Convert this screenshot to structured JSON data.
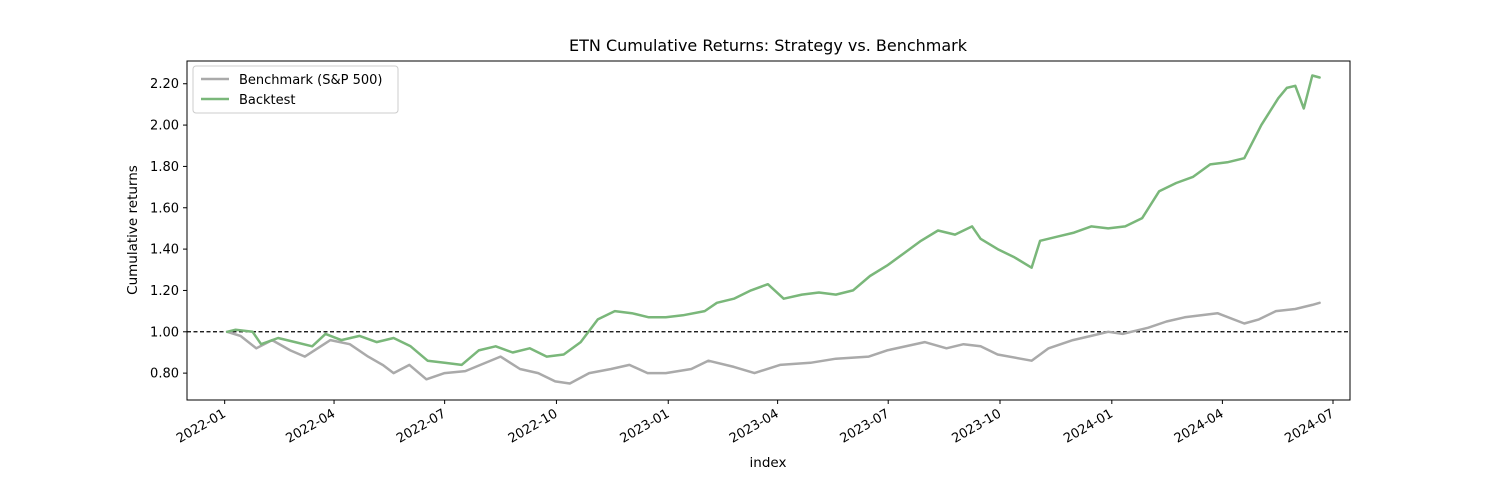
{
  "chart_data": {
    "type": "line",
    "title": "ETN Cumulative Returns: Strategy vs. Benchmark",
    "xlabel": "index",
    "ylabel": "Cumulative returns",
    "xlim": [
      "2021-12-01",
      "2024-07-15"
    ],
    "ylim": [
      0.67,
      2.31
    ],
    "x_ticks": [
      "2022-01",
      "2022-04",
      "2022-07",
      "2022-10",
      "2023-01",
      "2023-04",
      "2023-07",
      "2023-10",
      "2024-01",
      "2024-04",
      "2024-07"
    ],
    "y_ticks": [
      "0.80",
      "1.00",
      "1.20",
      "1.40",
      "1.60",
      "1.80",
      "2.00",
      "2.20"
    ],
    "reference_line": {
      "y": 1.0,
      "style": "dashed",
      "color": "#000000"
    },
    "grid": false,
    "legend": {
      "placement": "top-left"
    },
    "series": [
      {
        "name": "Benchmark (S&P 500)",
        "color": "#aaaaaa",
        "points": [
          [
            "2022-01-03",
            1.0
          ],
          [
            "2022-01-14",
            0.98
          ],
          [
            "2022-01-27",
            0.92
          ],
          [
            "2022-02-09",
            0.96
          ],
          [
            "2022-02-24",
            0.91
          ],
          [
            "2022-03-08",
            0.88
          ],
          [
            "2022-03-29",
            0.96
          ],
          [
            "2022-04-14",
            0.94
          ],
          [
            "2022-04-29",
            0.88
          ],
          [
            "2022-05-11",
            0.84
          ],
          [
            "2022-05-20",
            0.8
          ],
          [
            "2022-06-02",
            0.84
          ],
          [
            "2022-06-16",
            0.77
          ],
          [
            "2022-07-01",
            0.8
          ],
          [
            "2022-07-18",
            0.81
          ],
          [
            "2022-08-16",
            0.88
          ],
          [
            "2022-09-01",
            0.82
          ],
          [
            "2022-09-16",
            0.8
          ],
          [
            "2022-09-30",
            0.76
          ],
          [
            "2022-10-12",
            0.75
          ],
          [
            "2022-10-28",
            0.8
          ],
          [
            "2022-11-15",
            0.82
          ],
          [
            "2022-11-30",
            0.84
          ],
          [
            "2022-12-15",
            0.8
          ],
          [
            "2022-12-30",
            0.8
          ],
          [
            "2023-01-20",
            0.82
          ],
          [
            "2023-02-03",
            0.86
          ],
          [
            "2023-02-24",
            0.83
          ],
          [
            "2023-03-13",
            0.8
          ],
          [
            "2023-04-03",
            0.84
          ],
          [
            "2023-04-28",
            0.85
          ],
          [
            "2023-05-19",
            0.87
          ],
          [
            "2023-06-15",
            0.88
          ],
          [
            "2023-06-30",
            0.91
          ],
          [
            "2023-07-31",
            0.95
          ],
          [
            "2023-08-18",
            0.92
          ],
          [
            "2023-09-01",
            0.94
          ],
          [
            "2023-09-15",
            0.93
          ],
          [
            "2023-09-29",
            0.89
          ],
          [
            "2023-10-27",
            0.86
          ],
          [
            "2023-11-10",
            0.92
          ],
          [
            "2023-11-30",
            0.96
          ],
          [
            "2023-12-15",
            0.98
          ],
          [
            "2023-12-29",
            1.0
          ],
          [
            "2024-01-10",
            0.99
          ],
          [
            "2024-01-31",
            1.02
          ],
          [
            "2024-02-15",
            1.05
          ],
          [
            "2024-03-01",
            1.07
          ],
          [
            "2024-03-28",
            1.09
          ],
          [
            "2024-04-19",
            1.04
          ],
          [
            "2024-05-01",
            1.06
          ],
          [
            "2024-05-15",
            1.1
          ],
          [
            "2024-05-31",
            1.11
          ],
          [
            "2024-06-14",
            1.13
          ],
          [
            "2024-06-20",
            1.14
          ]
        ]
      },
      {
        "name": "Backtest",
        "color": "#7ab77a",
        "points": [
          [
            "2022-01-03",
            1.0
          ],
          [
            "2022-01-10",
            1.01
          ],
          [
            "2022-01-24",
            1.0
          ],
          [
            "2022-01-31",
            0.94
          ],
          [
            "2022-02-14",
            0.97
          ],
          [
            "2022-02-28",
            0.95
          ],
          [
            "2022-03-14",
            0.93
          ],
          [
            "2022-03-25",
            0.99
          ],
          [
            "2022-04-07",
            0.96
          ],
          [
            "2022-04-22",
            0.98
          ],
          [
            "2022-05-06",
            0.95
          ],
          [
            "2022-05-20",
            0.97
          ],
          [
            "2022-06-03",
            0.93
          ],
          [
            "2022-06-17",
            0.86
          ],
          [
            "2022-07-01",
            0.85
          ],
          [
            "2022-07-15",
            0.84
          ],
          [
            "2022-07-29",
            0.91
          ],
          [
            "2022-08-12",
            0.93
          ],
          [
            "2022-08-26",
            0.9
          ],
          [
            "2022-09-09",
            0.92
          ],
          [
            "2022-09-23",
            0.88
          ],
          [
            "2022-10-07",
            0.89
          ],
          [
            "2022-10-21",
            0.95
          ],
          [
            "2022-11-04",
            1.06
          ],
          [
            "2022-11-18",
            1.1
          ],
          [
            "2022-12-02",
            1.09
          ],
          [
            "2022-12-16",
            1.07
          ],
          [
            "2022-12-30",
            1.07
          ],
          [
            "2023-01-13",
            1.08
          ],
          [
            "2023-01-31",
            1.1
          ],
          [
            "2023-02-10",
            1.14
          ],
          [
            "2023-02-24",
            1.16
          ],
          [
            "2023-03-10",
            1.2
          ],
          [
            "2023-03-24",
            1.23
          ],
          [
            "2023-04-06",
            1.16
          ],
          [
            "2023-04-21",
            1.18
          ],
          [
            "2023-05-05",
            1.19
          ],
          [
            "2023-05-19",
            1.18
          ],
          [
            "2023-06-02",
            1.2
          ],
          [
            "2023-06-16",
            1.27
          ],
          [
            "2023-06-30",
            1.32
          ],
          [
            "2023-07-14",
            1.38
          ],
          [
            "2023-07-28",
            1.44
          ],
          [
            "2023-08-11",
            1.49
          ],
          [
            "2023-08-25",
            1.47
          ],
          [
            "2023-09-08",
            1.51
          ],
          [
            "2023-09-15",
            1.45
          ],
          [
            "2023-09-29",
            1.4
          ],
          [
            "2023-10-13",
            1.36
          ],
          [
            "2023-10-27",
            1.31
          ],
          [
            "2023-11-03",
            1.44
          ],
          [
            "2023-11-17",
            1.46
          ],
          [
            "2023-12-01",
            1.48
          ],
          [
            "2023-12-15",
            1.51
          ],
          [
            "2023-12-29",
            1.5
          ],
          [
            "2024-01-12",
            1.51
          ],
          [
            "2024-01-26",
            1.55
          ],
          [
            "2024-02-09",
            1.68
          ],
          [
            "2024-02-23",
            1.72
          ],
          [
            "2024-03-08",
            1.75
          ],
          [
            "2024-03-22",
            1.81
          ],
          [
            "2024-04-05",
            1.82
          ],
          [
            "2024-04-19",
            1.84
          ],
          [
            "2024-05-03",
            2.0
          ],
          [
            "2024-05-17",
            2.13
          ],
          [
            "2024-05-24",
            2.18
          ],
          [
            "2024-05-31",
            2.19
          ],
          [
            "2024-06-07",
            2.08
          ],
          [
            "2024-06-14",
            2.24
          ],
          [
            "2024-06-20",
            2.23
          ]
        ]
      }
    ]
  }
}
